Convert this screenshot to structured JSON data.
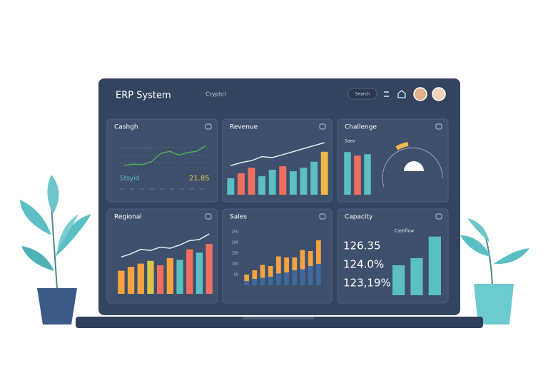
{
  "header": {
    "title": "ERP System",
    "subtitle": "Cryptcl",
    "button": "Search"
  },
  "panels": [
    {
      "title": "Cashgh",
      "type": "line",
      "ylim": [
        0,
        100
      ],
      "color": "#4caf50",
      "line": [
        18,
        22,
        20,
        30,
        55,
        62,
        50,
        58,
        62,
        80
      ],
      "label": "Stsyid",
      "value_text": "21.85"
    },
    {
      "title": "Revenue",
      "type": "bar",
      "ylim": [
        0,
        100
      ],
      "values": [
        33,
        43,
        54,
        37,
        50,
        57,
        47,
        54,
        66,
        86
      ],
      "colors": [
        "#5bbfc4",
        "#ef6f5e",
        "#ef6f5e",
        "#5bbfc4",
        "#5bbfc4",
        "#ef6f5e",
        "#5bbfc4",
        "#5bbfc4",
        "#5bbfc4",
        "#f2b84b"
      ],
      "line": [
        44,
        50,
        54,
        62,
        60,
        66,
        72,
        78,
        84,
        90
      ]
    },
    {
      "title": "Challenge",
      "type": "bar",
      "ylim": [
        0,
        100
      ],
      "values": [
        98,
        90,
        93
      ],
      "colors": [
        "#5bbfc4",
        "#ef6f5e",
        "#5bbfc4"
      ],
      "label": "Saes"
    },
    {
      "title": "Regional",
      "type": "bar",
      "ylim": [
        0,
        100
      ],
      "values": [
        42,
        49,
        55,
        60,
        52,
        65,
        62,
        81,
        75,
        91
      ],
      "colors": [
        "#f4a340",
        "#f4a340",
        "#f4a340",
        "#d9c54c",
        "#ef6f5e",
        "#f4a340",
        "#5bbfc4",
        "#ef6f5e",
        "#5bbfc4",
        "#ef6f5e"
      ],
      "line": [
        54,
        60,
        68,
        66,
        72,
        70,
        76,
        84,
        86,
        96
      ]
    },
    {
      "title": "Sales",
      "type": "stacked",
      "ylim": [
        0,
        250
      ],
      "yticks": [
        50,
        100,
        150,
        200,
        250
      ],
      "series": [
        {
          "color": "#3f6aa0",
          "values": [
            20,
            30,
            35,
            40,
            55,
            60,
            70,
            75,
            90,
            100
          ]
        },
        {
          "color": "#f4a340",
          "values": [
            30,
            40,
            60,
            50,
            80,
            70,
            60,
            90,
            70,
            110
          ]
        }
      ]
    },
    {
      "title": "Capacity",
      "type": "bar",
      "ylim": [
        0,
        100
      ],
      "values": [
        50,
        62,
        98
      ],
      "colors": [
        "#5bbfc4",
        "#5bbfc4",
        "#5bbfc4"
      ],
      "label": "Cashflow",
      "stats": [
        "126.35",
        "124.0%",
        "123,19%"
      ]
    }
  ]
}
